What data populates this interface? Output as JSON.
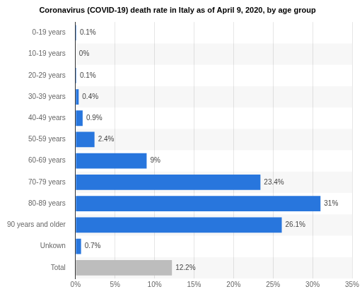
{
  "chart_data": {
    "type": "bar",
    "title": "Coronavirus (COVID-19) death rate in Italy as of April 9, 2020, by age group",
    "orientation": "horizontal",
    "categories": [
      "0-19 years",
      "10-19 years",
      "20-29 years",
      "30-39 years",
      "40-49 years",
      "50-59 years",
      "60-69 years",
      "70-79 years",
      "80-89 years",
      "90 years and older",
      "Unkown",
      "Total"
    ],
    "values": [
      0.1,
      0,
      0.1,
      0.4,
      0.9,
      2.4,
      9,
      23.4,
      31,
      26.1,
      0.7,
      12.2
    ],
    "value_labels": [
      "0.1%",
      "0%",
      "0.1%",
      "0.4%",
      "0.9%",
      "2.4%",
      "9%",
      "23.4%",
      "31%",
      "26.1%",
      "0.7%",
      "12.2%"
    ],
    "colors": [
      "#2876dd",
      "#2876dd",
      "#2876dd",
      "#2876dd",
      "#2876dd",
      "#2876dd",
      "#2876dd",
      "#2876dd",
      "#2876dd",
      "#2876dd",
      "#2876dd",
      "#bdbdbd"
    ],
    "xlim": [
      0,
      35
    ],
    "xticks": [
      {
        "value": 0,
        "label": "0%"
      },
      {
        "value": 5,
        "label": "5%"
      },
      {
        "value": 10,
        "label": "10%"
      },
      {
        "value": 15,
        "label": "15%"
      },
      {
        "value": 20,
        "label": "20%"
      },
      {
        "value": 25,
        "label": "25%"
      },
      {
        "value": 30,
        "label": "30%"
      },
      {
        "value": 35,
        "label": "35%"
      }
    ],
    "grid": true,
    "data_labels": true
  }
}
